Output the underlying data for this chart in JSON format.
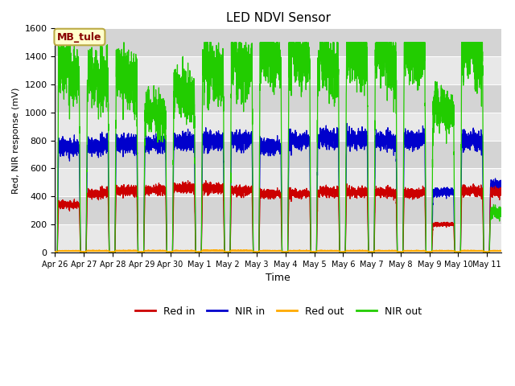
{
  "title": "LED NDVI Sensor",
  "xlabel": "Time",
  "ylabel": "Red, NIR response (mV)",
  "ylim": [
    0,
    1600
  ],
  "yticks": [
    0,
    200,
    400,
    600,
    800,
    1000,
    1200,
    1400,
    1600
  ],
  "annotation_text": "MB_tule",
  "annotation_bg": "#ffffcc",
  "annotation_border": "#bbaa44",
  "annotation_text_color": "#880000",
  "colors": {
    "red_in": "#cc0000",
    "nir_in": "#0000cc",
    "red_out": "#ffaa00",
    "nir_out": "#22cc00"
  },
  "plot_bg_light": "#e8e8e8",
  "plot_bg_dark": "#d4d4d4",
  "fig_bg": "#ffffff",
  "tick_labels": [
    "Apr 26",
    "Apr 27",
    "Apr 28",
    "Apr 29",
    "Apr 30",
    "May 1",
    "May 2",
    "May 3",
    "May 4",
    "May 5",
    "May 6",
    "May 7",
    "May 8",
    "May 9",
    "May 10",
    "May 11"
  ],
  "day_peaks": [
    [
      0.0,
      340,
      750,
      20,
      1260
    ],
    [
      1.0,
      420,
      760,
      22,
      1200
    ],
    [
      2.0,
      440,
      775,
      22,
      1210
    ],
    [
      3.0,
      445,
      775,
      22,
      960
    ],
    [
      4.0,
      460,
      790,
      22,
      1100
    ],
    [
      5.0,
      460,
      800,
      25,
      1280
    ],
    [
      6.0,
      440,
      800,
      25,
      1290
    ],
    [
      7.0,
      420,
      760,
      22,
      1380
    ],
    [
      8.0,
      420,
      800,
      22,
      1370
    ],
    [
      9.0,
      430,
      810,
      22,
      1300
    ],
    [
      10.0,
      430,
      810,
      22,
      1380
    ],
    [
      11.0,
      430,
      800,
      22,
      1370
    ],
    [
      12.0,
      420,
      800,
      20,
      1380
    ],
    [
      13.0,
      200,
      430,
      20,
      990
    ],
    [
      14.0,
      440,
      800,
      22,
      1420
    ],
    [
      15.0,
      430,
      480,
      20,
      270
    ]
  ]
}
